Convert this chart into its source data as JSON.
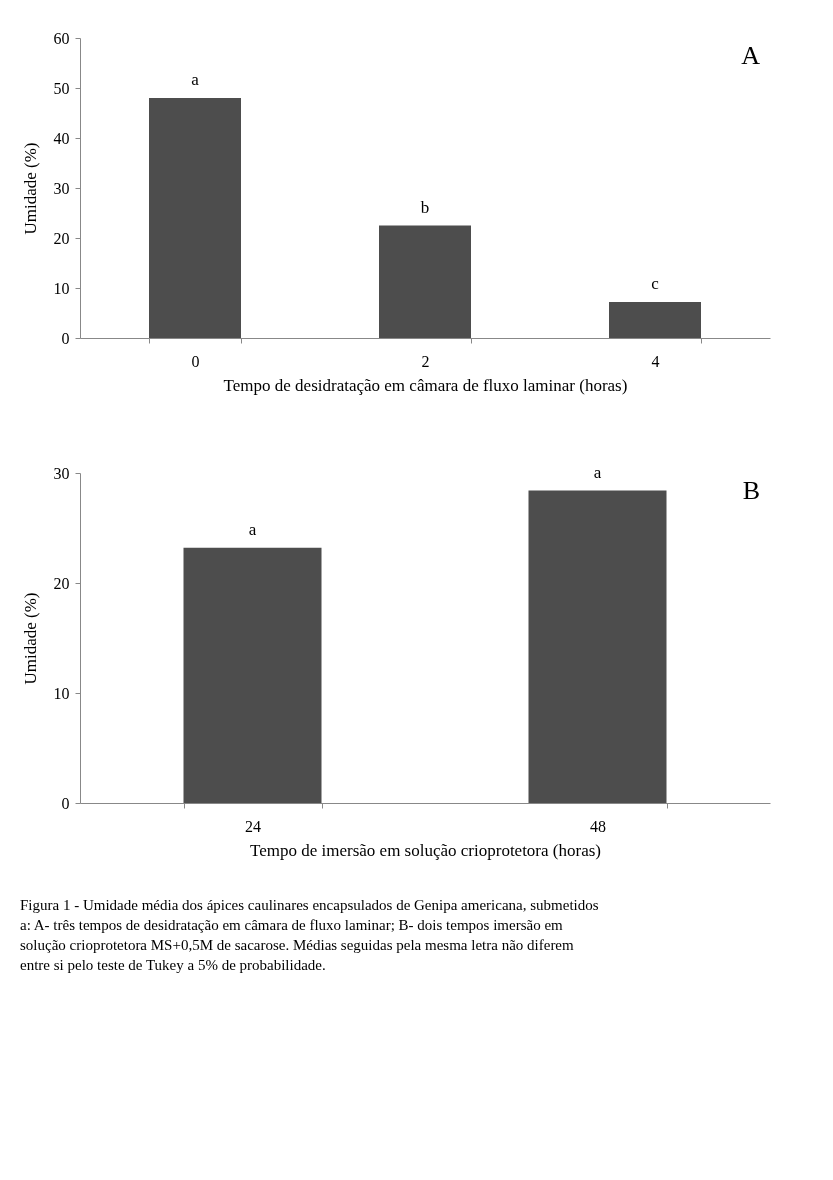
{
  "chart_data": [
    {
      "type": "bar",
      "categories": [
        "0",
        "2",
        "4"
      ],
      "values": [
        48,
        22.5,
        7.2
      ],
      "color": "#4d4d4d",
      "xlabel": "Tempo de desidratação em câmara de fluxo laminar (horas)",
      "ylabel": "Umidade (%)",
      "ylim": [
        0,
        60
      ],
      "yticks": [
        0,
        10,
        20,
        30,
        40,
        50,
        60
      ],
      "annotations": [
        "A",
        {
          "text": "a",
          "x": "0",
          "y": 48
        },
        {
          "text": "b",
          "x": "2",
          "y": 22.5
        },
        {
          "text": "c",
          "x": "4",
          "y": 7.2
        }
      ]
    },
    {
      "type": "bar",
      "categories": [
        "24",
        "48"
      ],
      "values": [
        23.2,
        28.4
      ],
      "color": "#4d4d4d",
      "xlabel": "Tempo de imersão em solução crioprotetora (horas)",
      "ylabel": "Umidade (%)",
      "ylim": [
        0,
        30
      ],
      "yticks": [
        0,
        10,
        20,
        30
      ],
      "annotations": [
        "B",
        {
          "text": "a",
          "x": "24",
          "y": 23.2
        },
        {
          "text": "a",
          "x": "48",
          "y": 28.4
        },
        "Figura 1 - Umidade média dos ápices caulinares encapsulados de Genipa americana, submetidos a: A- três tempos de desidratação em câmara de fluxo laminar; B- dois tempos imersão em solução crioprotetora MS+0,5M de sacarose. Médias seguidas pela mesma letra não diferem entre si pelo teste de Tukey a 5% de probabilidade."
      ]
    }
  ]
}
